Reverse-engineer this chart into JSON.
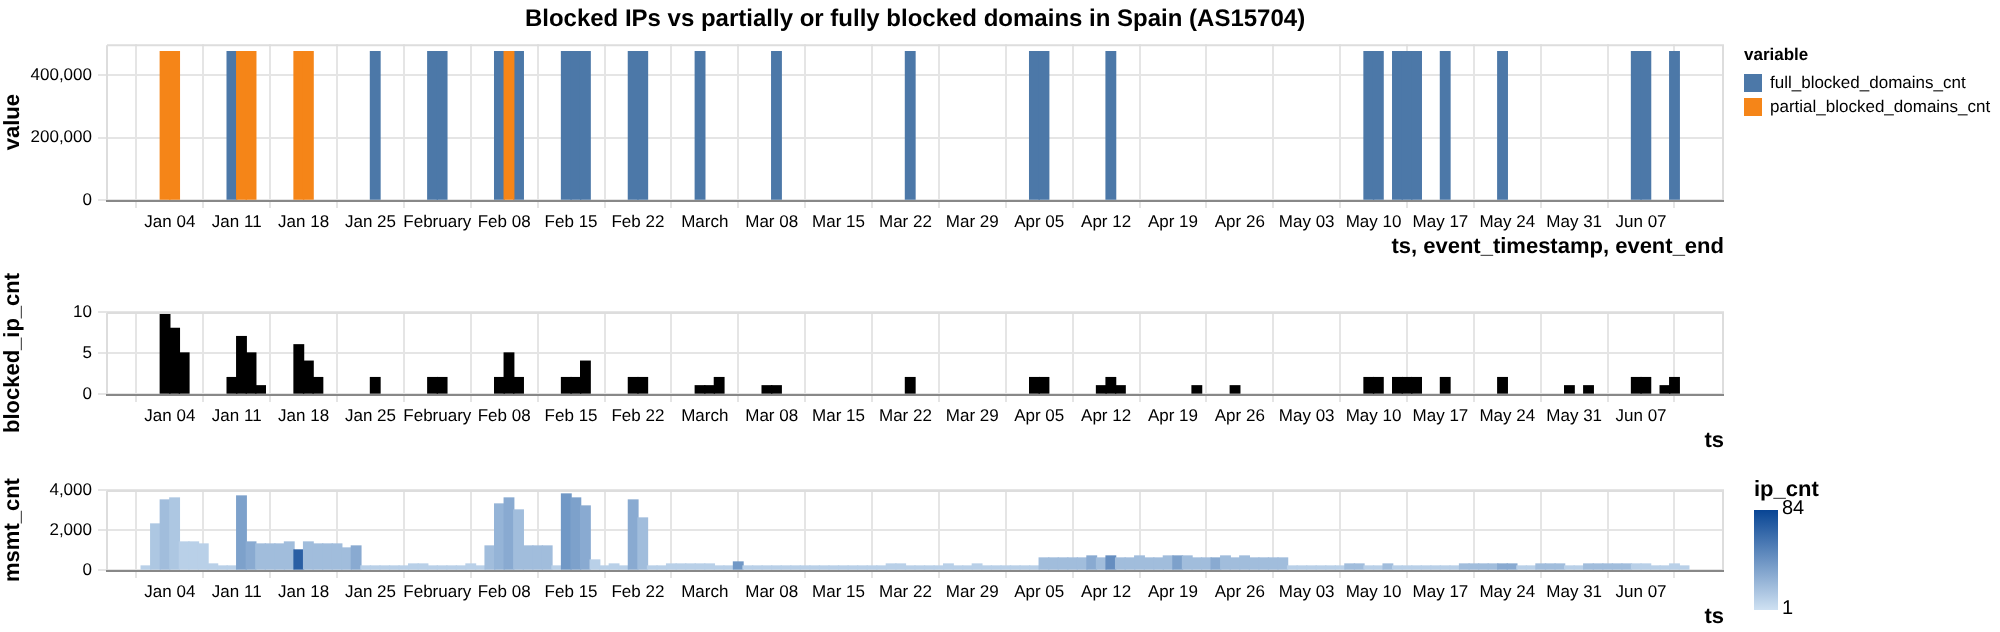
{
  "chart_data": [
    {
      "type": "bar",
      "title": "Blocked IPs vs partially or fully blocked domains in Spain (AS15704)",
      "xlabel": "ts, event_timestamp, event_end",
      "ylabel": "value",
      "legend": "right",
      "legend_title": "variable",
      "grid": true,
      "xlim": [
        "--01-01",
        "--06-12"
      ],
      "xticks": [
        {
          "value": "--01-04",
          "label": "Jan 04"
        },
        {
          "value": "--01-11",
          "label": "Jan 11"
        },
        {
          "value": "--01-18",
          "label": "Jan 18"
        },
        {
          "value": "--01-25",
          "label": "Jan 25"
        },
        {
          "value": "--02-01",
          "label": "February"
        },
        {
          "value": "--02-08",
          "label": "Feb 08"
        },
        {
          "value": "--02-15",
          "label": "Feb 15"
        },
        {
          "value": "--02-22",
          "label": "Feb 22"
        },
        {
          "value": "--03-01",
          "label": "March"
        },
        {
          "value": "--03-08",
          "label": "Mar 08"
        },
        {
          "value": "--03-15",
          "label": "Mar 15"
        },
        {
          "value": "--03-22",
          "label": "Mar 22"
        },
        {
          "value": "--03-29",
          "label": "Mar 29"
        },
        {
          "value": "--04-05",
          "label": "Apr 05"
        },
        {
          "value": "--04-12",
          "label": "Apr 12"
        },
        {
          "value": "--04-19",
          "label": "Apr 19"
        },
        {
          "value": "--04-26",
          "label": "Apr 26"
        },
        {
          "value": "--05-03",
          "label": "May 03"
        },
        {
          "value": "--05-10",
          "label": "May 10"
        },
        {
          "value": "--05-17",
          "label": "May 17"
        },
        {
          "value": "--05-24",
          "label": "May 24"
        },
        {
          "value": "--05-31",
          "label": "May 31"
        },
        {
          "value": "--06-07",
          "label": "Jun 07"
        }
      ],
      "ylim": [
        0,
        500000
      ],
      "yticks": [
        {
          "value": 0,
          "label": "0"
        },
        {
          "value": 200000,
          "label": "200,000"
        },
        {
          "value": 400000,
          "label": "400,000"
        }
      ],
      "series": [
        {
          "name": "full_blocked_domains_cnt",
          "color": "#4c78a8",
          "x": [
            "--01-10",
            "--01-25",
            "--01-31",
            "--02-01",
            "--02-07",
            "--02-09",
            "--02-14",
            "--02-15",
            "--02-16",
            "--02-21",
            "--02-22",
            "--02-28",
            "--03-08",
            "--03-22",
            "--04-04",
            "--04-05",
            "--04-12",
            "--05-09",
            "--05-10",
            "--05-12",
            "--05-13",
            "--05-14",
            "--05-17",
            "--05-23",
            "--06-06",
            "--06-07",
            "--06-10"
          ],
          "values": [
            476000,
            476000,
            476000,
            476000,
            476000,
            476000,
            476000,
            476000,
            476000,
            476000,
            476000,
            476000,
            476000,
            476000,
            476000,
            476000,
            476000,
            476000,
            476000,
            476000,
            476000,
            476000,
            476000,
            476000,
            476000,
            476000,
            476000
          ]
        },
        {
          "name": "partial_blocked_domains_cnt",
          "color": "#f58518",
          "x": [
            "--01-03",
            "--01-04",
            "--01-11",
            "--01-12",
            "--01-17",
            "--01-18",
            "--02-08"
          ],
          "values": [
            476000,
            476000,
            476000,
            476000,
            476000,
            476000,
            476000
          ]
        }
      ]
    },
    {
      "type": "bar",
      "xlabel": "ts",
      "ylabel": "blocked_ip_cnt",
      "grid": true,
      "color": "#000000",
      "xlim": [
        "--01-01",
        "--06-12"
      ],
      "xticks": [
        {
          "value": "--01-04",
          "label": "Jan 04"
        },
        {
          "value": "--01-11",
          "label": "Jan 11"
        },
        {
          "value": "--01-18",
          "label": "Jan 18"
        },
        {
          "value": "--01-25",
          "label": "Jan 25"
        },
        {
          "value": "--02-01",
          "label": "February"
        },
        {
          "value": "--02-08",
          "label": "Feb 08"
        },
        {
          "value": "--02-15",
          "label": "Feb 15"
        },
        {
          "value": "--02-22",
          "label": "Feb 22"
        },
        {
          "value": "--03-01",
          "label": "March"
        },
        {
          "value": "--03-08",
          "label": "Mar 08"
        },
        {
          "value": "--03-15",
          "label": "Mar 15"
        },
        {
          "value": "--03-22",
          "label": "Mar 22"
        },
        {
          "value": "--03-29",
          "label": "Mar 29"
        },
        {
          "value": "--04-05",
          "label": "Apr 05"
        },
        {
          "value": "--04-12",
          "label": "Apr 12"
        },
        {
          "value": "--04-19",
          "label": "Apr 19"
        },
        {
          "value": "--04-26",
          "label": "Apr 26"
        },
        {
          "value": "--05-03",
          "label": "May 03"
        },
        {
          "value": "--05-10",
          "label": "May 10"
        },
        {
          "value": "--05-17",
          "label": "May 17"
        },
        {
          "value": "--05-24",
          "label": "May 24"
        },
        {
          "value": "--05-31",
          "label": "May 31"
        },
        {
          "value": "--06-07",
          "label": "Jun 07"
        }
      ],
      "ylim": [
        0,
        10
      ],
      "yticks": [
        0,
        5,
        10
      ],
      "x": [
        "--01-03",
        "--01-04",
        "--01-05",
        "--01-10",
        "--01-11",
        "--01-12",
        "--01-13",
        "--01-17",
        "--01-18",
        "--01-19",
        "--01-25",
        "--01-31",
        "--02-01",
        "--02-07",
        "--02-08",
        "--02-09",
        "--02-14",
        "--02-15",
        "--02-16",
        "--02-21",
        "--02-22",
        "--02-28",
        "--03-01",
        "--03-02",
        "--03-07",
        "--03-08",
        "--03-22",
        "--04-04",
        "--04-05",
        "--04-11",
        "--04-12",
        "--04-13",
        "--04-21",
        "--04-25",
        "--05-09",
        "--05-10",
        "--05-12",
        "--05-13",
        "--05-14",
        "--05-17",
        "--05-23",
        "--05-30",
        "--06-01",
        "--06-06",
        "--06-07",
        "--06-09",
        "--06-10"
      ],
      "values": [
        10,
        8,
        5,
        2,
        7,
        5,
        1,
        6,
        4,
        2,
        2,
        2,
        2,
        2,
        5,
        2,
        2,
        2,
        4,
        2,
        2,
        1,
        1,
        2,
        1,
        1,
        2,
        2,
        2,
        1,
        2,
        1,
        1,
        1,
        2,
        2,
        2,
        2,
        2,
        2,
        2,
        1,
        1,
        2,
        2,
        1,
        2
      ]
    },
    {
      "type": "bar",
      "xlabel": "ts",
      "ylabel": "msmt_cnt",
      "grid": true,
      "clabel": "ip_cnt",
      "clim": [
        1,
        84
      ],
      "cticks": [
        1,
        84
      ],
      "xlim": [
        "--01-01",
        "--06-12"
      ],
      "xticks": [
        {
          "value": "--01-04",
          "label": "Jan 04"
        },
        {
          "value": "--01-11",
          "label": "Jan 11"
        },
        {
          "value": "--01-18",
          "label": "Jan 18"
        },
        {
          "value": "--01-25",
          "label": "Jan 25"
        },
        {
          "value": "--02-01",
          "label": "February"
        },
        {
          "value": "--02-08",
          "label": "Feb 08"
        },
        {
          "value": "--02-15",
          "label": "Feb 15"
        },
        {
          "value": "--02-22",
          "label": "Feb 22"
        },
        {
          "value": "--03-01",
          "label": "March"
        },
        {
          "value": "--03-08",
          "label": "Mar 08"
        },
        {
          "value": "--03-15",
          "label": "Mar 15"
        },
        {
          "value": "--03-22",
          "label": "Mar 22"
        },
        {
          "value": "--03-29",
          "label": "Mar 29"
        },
        {
          "value": "--04-05",
          "label": "Apr 05"
        },
        {
          "value": "--04-12",
          "label": "Apr 12"
        },
        {
          "value": "--04-19",
          "label": "Apr 19"
        },
        {
          "value": "--04-26",
          "label": "Apr 26"
        },
        {
          "value": "--05-03",
          "label": "May 03"
        },
        {
          "value": "--05-10",
          "label": "May 10"
        },
        {
          "value": "--05-17",
          "label": "May 17"
        },
        {
          "value": "--05-24",
          "label": "May 24"
        },
        {
          "value": "--05-31",
          "label": "May 31"
        },
        {
          "value": "--06-07",
          "label": "Jun 07"
        }
      ],
      "ylim": [
        0,
        4000
      ],
      "yticks": [
        {
          "value": 0,
          "label": "0"
        },
        {
          "value": 2000,
          "label": "2,000"
        },
        {
          "value": 4000,
          "label": "4,000"
        }
      ],
      "x": [
        "--01-01",
        "--01-02",
        "--01-03",
        "--01-04",
        "--01-05",
        "--01-06",
        "--01-07",
        "--01-08",
        "--01-09",
        "--01-10",
        "--01-11",
        "--01-12",
        "--01-13",
        "--01-14",
        "--01-15",
        "--01-16",
        "--01-17",
        "--01-18",
        "--01-19",
        "--01-20",
        "--01-21",
        "--01-22",
        "--01-23",
        "--01-24",
        "--01-25",
        "--01-26",
        "--01-27",
        "--01-28",
        "--01-29",
        "--01-30",
        "--01-31",
        "--02-01",
        "--02-02",
        "--02-03",
        "--02-04",
        "--02-05",
        "--02-06",
        "--02-07",
        "--02-08",
        "--02-09",
        "--02-10",
        "--02-11",
        "--02-12",
        "--02-13",
        "--02-14",
        "--02-15",
        "--02-16",
        "--02-17",
        "--02-18",
        "--02-19",
        "--02-20",
        "--02-21",
        "--02-22",
        "--02-23",
        "--02-24",
        "--02-25",
        "--02-26",
        "--02-27",
        "--02-28",
        "--03-01",
        "--03-02",
        "--03-03",
        "--03-04",
        "--03-05",
        "--03-06",
        "--03-07",
        "--03-08",
        "--03-09",
        "--03-10",
        "--03-11",
        "--03-12",
        "--03-13",
        "--03-14",
        "--03-15",
        "--03-16",
        "--03-17",
        "--03-18",
        "--03-19",
        "--03-20",
        "--03-21",
        "--03-22",
        "--03-23",
        "--03-24",
        "--03-25",
        "--03-26",
        "--03-27",
        "--03-28",
        "--03-29",
        "--03-30",
        "--03-31",
        "--04-01",
        "--04-02",
        "--04-03",
        "--04-04",
        "--04-05",
        "--04-06",
        "--04-07",
        "--04-08",
        "--04-09",
        "--04-10",
        "--04-11",
        "--04-12",
        "--04-13",
        "--04-14",
        "--04-15",
        "--04-16",
        "--04-17",
        "--04-18",
        "--04-19",
        "--04-20",
        "--04-21",
        "--04-22",
        "--04-23",
        "--04-24",
        "--04-25",
        "--04-26",
        "--04-27",
        "--04-28",
        "--04-29",
        "--04-30",
        "--05-01",
        "--05-02",
        "--05-03",
        "--05-04",
        "--05-05",
        "--05-06",
        "--05-07",
        "--05-08",
        "--05-09",
        "--05-10",
        "--05-11",
        "--05-12",
        "--05-13",
        "--05-14",
        "--05-15",
        "--05-16",
        "--05-17",
        "--05-18",
        "--05-19",
        "--05-20",
        "--05-21",
        "--05-22",
        "--05-23",
        "--05-24",
        "--05-25",
        "--05-26",
        "--05-27",
        "--05-28",
        "--05-29",
        "--05-30",
        "--05-31",
        "--06-01",
        "--06-02",
        "--06-03",
        "--06-04",
        "--06-05",
        "--06-06",
        "--06-07",
        "--06-08",
        "--06-09",
        "--06-10",
        "--06-11"
      ],
      "values": [
        200,
        2300,
        3500,
        3600,
        1400,
        1400,
        1300,
        300,
        200,
        200,
        3700,
        1400,
        1300,
        1300,
        1300,
        1400,
        1000,
        1400,
        1300,
        1300,
        1300,
        1100,
        1200,
        200,
        200,
        200,
        200,
        200,
        300,
        300,
        200,
        200,
        200,
        200,
        300,
        200,
        1200,
        3300,
        3600,
        3000,
        1200,
        1200,
        1200,
        200,
        3800,
        3600,
        3200,
        500,
        200,
        300,
        200,
        3500,
        2600,
        200,
        200,
        300,
        300,
        300,
        300,
        300,
        200,
        200,
        400,
        200,
        200,
        200,
        200,
        200,
        200,
        200,
        200,
        200,
        200,
        200,
        200,
        200,
        200,
        200,
        300,
        300,
        200,
        200,
        200,
        200,
        300,
        200,
        200,
        300,
        200,
        200,
        200,
        200,
        200,
        200,
        600,
        600,
        600,
        600,
        600,
        700,
        600,
        700,
        600,
        600,
        700,
        600,
        600,
        700,
        700,
        700,
        600,
        600,
        600,
        700,
        600,
        700,
        600,
        600,
        600,
        600,
        200,
        200,
        200,
        200,
        200,
        200,
        300,
        300,
        200,
        200,
        300,
        200,
        200,
        200,
        200,
        200,
        200,
        200,
        300,
        300,
        300,
        300,
        300,
        300,
        200,
        200,
        300,
        300,
        300,
        200,
        200,
        300,
        300,
        300,
        300,
        300,
        300,
        300,
        200,
        200,
        300,
        200
      ],
      "cvalues": [
        10,
        15,
        20,
        15,
        10,
        10,
        10,
        10,
        10,
        10,
        35,
        30,
        20,
        20,
        20,
        20,
        70,
        20,
        20,
        20,
        20,
        20,
        30,
        10,
        10,
        10,
        10,
        10,
        10,
        10,
        10,
        10,
        10,
        10,
        10,
        10,
        20,
        25,
        30,
        20,
        20,
        20,
        20,
        10,
        40,
        35,
        30,
        10,
        10,
        10,
        10,
        30,
        20,
        10,
        10,
        10,
        10,
        10,
        10,
        10,
        10,
        10,
        40,
        10,
        10,
        10,
        10,
        10,
        10,
        10,
        10,
        10,
        10,
        10,
        10,
        10,
        10,
        10,
        10,
        10,
        10,
        10,
        10,
        10,
        10,
        10,
        10,
        10,
        10,
        10,
        10,
        10,
        10,
        10,
        20,
        20,
        20,
        20,
        20,
        30,
        20,
        45,
        20,
        20,
        20,
        20,
        20,
        20,
        35,
        20,
        20,
        20,
        30,
        20,
        20,
        20,
        20,
        20,
        20,
        20,
        10,
        10,
        10,
        10,
        10,
        10,
        20,
        20,
        10,
        10,
        20,
        10,
        10,
        10,
        10,
        10,
        10,
        10,
        20,
        20,
        20,
        20,
        30,
        30,
        10,
        10,
        20,
        20,
        20,
        10,
        10,
        20,
        20,
        20,
        20,
        20,
        10,
        10,
        10,
        10,
        10,
        10
      ]
    }
  ]
}
